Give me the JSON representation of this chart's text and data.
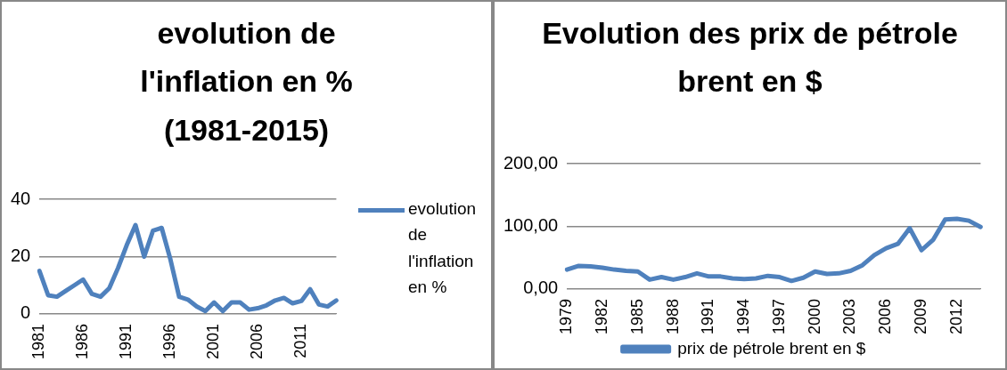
{
  "chart_data": [
    {
      "type": "line",
      "title": "evolution de l'inflation en % (1981-2015)",
      "categories": [
        "1981",
        null,
        null,
        null,
        null,
        "1986",
        null,
        null,
        null,
        null,
        "1991",
        null,
        null,
        null,
        null,
        "1996",
        null,
        null,
        null,
        null,
        "2001",
        null,
        null,
        null,
        null,
        "2006",
        null,
        null,
        null,
        null,
        "2011",
        null,
        null,
        null,
        null
      ],
      "series": [
        {
          "name": "evolution de l'inflation en %",
          "color": "#4f81bd",
          "values": [
            15,
            6.5,
            6,
            8,
            10,
            12,
            7,
            6,
            9,
            16,
            24,
            31,
            20,
            29,
            30,
            19,
            6,
            5,
            2.6,
            1,
            4,
            1,
            4,
            4,
            1.5,
            2,
            3,
            4.7,
            5.6,
            3.7,
            4.5,
            8.6,
            3.3,
            2.6,
            4.7
          ]
        }
      ],
      "ylim": [
        0,
        40
      ],
      "yticks": [
        0,
        20,
        40
      ],
      "grid": "y",
      "legend": "right",
      "marker": "none",
      "line_style": "solid"
    },
    {
      "type": "line",
      "title": "Evolution des prix de pétrole brent en $",
      "categories": [
        "1979",
        null,
        null,
        "1982",
        null,
        null,
        "1985",
        null,
        null,
        "1988",
        null,
        null,
        "1991",
        null,
        null,
        "1994",
        null,
        null,
        "1997",
        null,
        null,
        "2000",
        null,
        null,
        "2003",
        null,
        null,
        "2006",
        null,
        null,
        "2009",
        null,
        null,
        "2012",
        null,
        null
      ],
      "series": [
        {
          "name": "prix de pétrole brent en $",
          "color": "#4f81bd",
          "values": [
            31,
            37,
            36,
            34,
            31,
            29,
            28,
            15,
            19,
            15,
            19,
            25,
            20,
            20,
            17,
            16,
            17,
            21,
            19,
            13,
            18,
            28,
            24,
            25,
            29,
            38,
            54,
            65,
            72,
            97,
            62,
            79,
            111,
            112,
            109,
            99
          ]
        }
      ],
      "ylim": [
        0,
        200
      ],
      "yticks": [
        {
          "value": 0,
          "label": "0,00"
        },
        {
          "value": 100,
          "label": "100,00"
        },
        {
          "value": 200,
          "label": "200,00"
        }
      ],
      "grid": "y",
      "legend": "bottom",
      "marker": "none",
      "line_style": "solid"
    }
  ]
}
